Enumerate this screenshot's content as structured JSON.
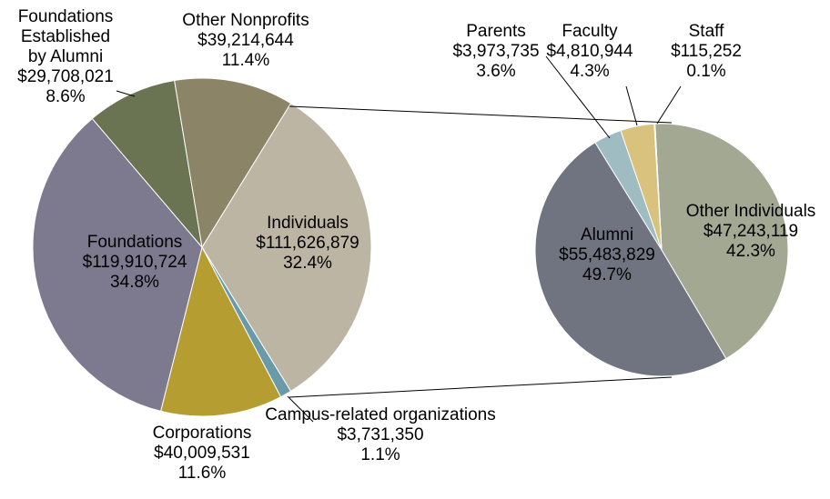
{
  "chart_data": [
    {
      "type": "pie",
      "categories": [
        "Individuals",
        "Campus-related organizations",
        "Corporations",
        "Foundations",
        "Foundations Established by Alumni",
        "Other Nonprofits"
      ],
      "values": [
        111626879,
        3731350,
        40009531,
        119910724,
        29708021,
        39214644
      ],
      "value_labels": [
        "$111,626,879",
        "$3,731,350",
        "$40,009,531",
        "$119,910,724",
        "$29,708,021",
        "$39,214,644"
      ],
      "percent_labels": [
        "32.4%",
        "1.1%",
        "11.6%",
        "34.8%",
        "8.6%",
        "11.4%"
      ],
      "colors": [
        "#bcb5a3",
        "#6a9aa8",
        "#b69d32",
        "#7d798f",
        "#6a7352",
        "#8c8466"
      ]
    },
    {
      "type": "pie",
      "categories": [
        "Other Individuals",
        "Alumni",
        "Parents",
        "Faculty",
        "Staff"
      ],
      "values": [
        47243119,
        55483829,
        3973735,
        4810944,
        115252
      ],
      "value_labels": [
        "$47,243,119",
        "$55,483,829",
        "$3,973,735",
        "$4,810,944",
        "$115,252"
      ],
      "percent_labels": [
        "42.3%",
        "49.7%",
        "3.6%",
        "4.3%",
        "0.1%"
      ],
      "colors": [
        "#a3a893",
        "#6f7480",
        "#9fbcc3",
        "#d8c27e",
        "#e0d0a0"
      ]
    }
  ]
}
